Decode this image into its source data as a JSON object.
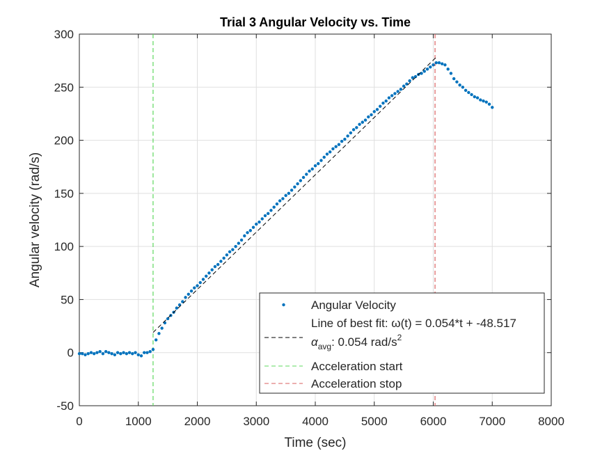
{
  "chart_data": {
    "type": "scatter",
    "title": "Trial 3 Angular Velocity vs. Time",
    "x_label": "Time (sec)",
    "y_label": "Angular velocity (rad/s)",
    "xlim": [
      0,
      8000
    ],
    "xticks": [
      0,
      1000,
      2000,
      3000,
      4000,
      5000,
      6000,
      7000,
      8000
    ],
    "ylim": [
      -50,
      300
    ],
    "yticks": [
      -50,
      0,
      50,
      100,
      150,
      200,
      250,
      300
    ],
    "grid": true,
    "series": [
      {
        "name": "Angular Velocity",
        "color": "#0072bd",
        "style": "dots",
        "x": [
          0,
          50,
          100,
          150,
          200,
          250,
          300,
          350,
          400,
          450,
          500,
          550,
          600,
          650,
          700,
          750,
          800,
          850,
          900,
          950,
          1000,
          1050,
          1100,
          1150,
          1200,
          1250,
          1300,
          1350,
          1400,
          1450,
          1500,
          1550,
          1600,
          1650,
          1700,
          1750,
          1800,
          1850,
          1900,
          1950,
          2000,
          2050,
          2100,
          2150,
          2200,
          2250,
          2300,
          2350,
          2400,
          2450,
          2500,
          2550,
          2600,
          2650,
          2700,
          2750,
          2800,
          2850,
          2900,
          2950,
          3000,
          3050,
          3100,
          3150,
          3200,
          3250,
          3300,
          3350,
          3400,
          3450,
          3500,
          3550,
          3600,
          3650,
          3700,
          3750,
          3800,
          3850,
          3900,
          3950,
          4000,
          4050,
          4100,
          4150,
          4200,
          4250,
          4300,
          4350,
          4400,
          4450,
          4500,
          4550,
          4600,
          4650,
          4700,
          4750,
          4800,
          4850,
          4900,
          4950,
          5000,
          5050,
          5100,
          5150,
          5200,
          5250,
          5300,
          5350,
          5400,
          5450,
          5500,
          5550,
          5600,
          5650,
          5700,
          5750,
          5800,
          5850,
          5900,
          5950,
          6000,
          6050,
          6100,
          6150,
          6200,
          6250,
          6300,
          6350,
          6400,
          6450,
          6500,
          6550,
          6600,
          6650,
          6700,
          6750,
          6800,
          6850,
          6900,
          6950,
          7000
        ],
        "values": [
          -1,
          -1,
          -2,
          -1,
          0,
          -1,
          0,
          1,
          -1,
          1,
          0,
          -1,
          -2,
          0,
          -1,
          0,
          -1,
          0,
          -1,
          0,
          -2,
          -3,
          0,
          0,
          1,
          3,
          12,
          18,
          23,
          28,
          32,
          35,
          38,
          42,
          45,
          48,
          52,
          55,
          58,
          61,
          63,
          66,
          69,
          72,
          75,
          78,
          81,
          83,
          86,
          89,
          92,
          95,
          97,
          100,
          103,
          106,
          110,
          113,
          115,
          118,
          121,
          123,
          126,
          129,
          131,
          134,
          137,
          140,
          143,
          145,
          148,
          150,
          153,
          156,
          159,
          162,
          165,
          168,
          171,
          173,
          176,
          178,
          181,
          184,
          187,
          189,
          192,
          194,
          196,
          199,
          201,
          204,
          207,
          210,
          212,
          215,
          217,
          219,
          222,
          224,
          227,
          229,
          232,
          235,
          237,
          240,
          242,
          244,
          246,
          248,
          251,
          253,
          256,
          259,
          260,
          262,
          263,
          265,
          267,
          269,
          271,
          273,
          273,
          272,
          271,
          267,
          263,
          258,
          255,
          252,
          250,
          247,
          245,
          243,
          241,
          240,
          238,
          237,
          236,
          234,
          231
        ]
      },
      {
        "name": "Line of best fit: ω(t) = 0.054*t + -48.517",
        "color": "#000000",
        "style": "dashed",
        "x": [
          1250,
          6050
        ],
        "values": [
          19,
          278.2
        ]
      }
    ],
    "annotation": {
      "symbol": "α",
      "sub": "avg",
      "text": ": 0.054 rad/s",
      "sup": "2"
    },
    "vlines": [
      {
        "name": "Acceleration start",
        "x": 1250,
        "color": "#5ed85e"
      },
      {
        "name": "Acceleration stop",
        "x": 6030,
        "color": "#d95f5f"
      }
    ]
  }
}
